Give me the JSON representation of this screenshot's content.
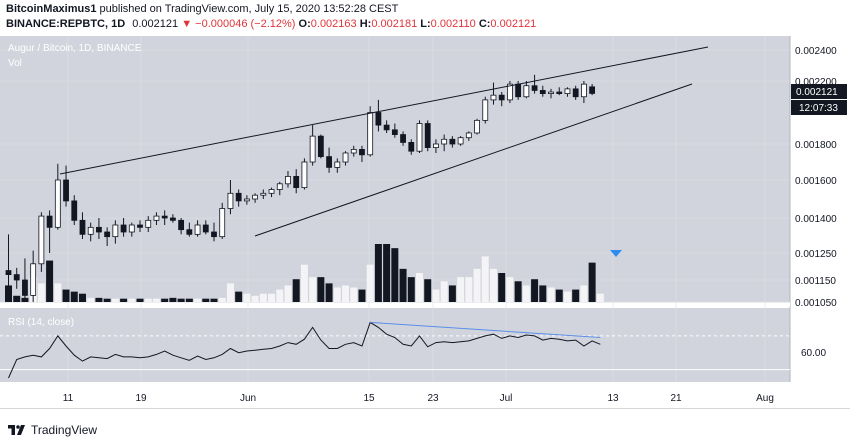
{
  "header": {
    "author": "BitcoinMaximus1",
    "published": "published on TradingView.com, July 15, 2020 13:52:28 CEST",
    "symbol": "BINANCE:REPBTC, 1D",
    "price": "0.002121",
    "change": "−0.000046 (−2.12%)",
    "o_label": "O:",
    "o_value": "0.002163",
    "h_label": "H:",
    "h_value": "0.002181",
    "l_label": "L:",
    "l_value": "0.002110",
    "c_label": "C:",
    "c_value": "0.002121"
  },
  "legend": {
    "title": "Augur / Bitcoin, 1D, BINANCE",
    "vol": "Vol",
    "rsi": "RSI (14, close)"
  },
  "price_tag": {
    "price": "0.002121",
    "countdown": "12:07:33"
  },
  "rsi_tag": "60.00",
  "footer": {
    "brand": "TradingView"
  },
  "colors": {
    "panel_bg": "#d1d4dc",
    "up": "#ffffff",
    "down": "#131722",
    "price_tag_bg": "#131722",
    "rsi_trend": "#5b8ee8",
    "signal": "#2e8cf0"
  },
  "chart_data": {
    "type": "candlestick",
    "title": "Augur / Bitcoin, 1D, BINANCE",
    "price_axis": [
      "0.002400",
      "0.002200",
      "0.001800",
      "0.001600",
      "0.001400",
      "0.001250",
      "0.001150",
      "0.001050"
    ],
    "x_ticks": [
      "11",
      "19",
      "Jun",
      "15",
      "23",
      "Jul",
      "13",
      "21",
      "Aug"
    ],
    "candles": [
      {
        "o": 0.001185,
        "h": 0.00133,
        "l": 0.00105,
        "c": 0.00117
      },
      {
        "o": 0.00117,
        "h": 0.001195,
        "l": 0.00111,
        "c": 0.00115
      },
      {
        "o": 0.00115,
        "h": 0.00123,
        "l": 0.00106,
        "c": 0.00108
      },
      {
        "o": 0.00108,
        "h": 0.00126,
        "l": 0.00105,
        "c": 0.00121
      },
      {
        "o": 0.00121,
        "h": 0.00143,
        "l": 0.00118,
        "c": 0.00141
      },
      {
        "o": 0.00141,
        "h": 0.00144,
        "l": 0.00125,
        "c": 0.00136
      },
      {
        "o": 0.00136,
        "h": 0.00169,
        "l": 0.00135,
        "c": 0.0016
      },
      {
        "o": 0.0016,
        "h": 0.00168,
        "l": 0.00146,
        "c": 0.00149
      },
      {
        "o": 0.00149,
        "h": 0.00152,
        "l": 0.00137,
        "c": 0.00139
      },
      {
        "o": 0.00139,
        "h": 0.00143,
        "l": 0.00131,
        "c": 0.00133
      },
      {
        "o": 0.00133,
        "h": 0.00138,
        "l": 0.0013,
        "c": 0.00136
      },
      {
        "o": 0.00136,
        "h": 0.0014,
        "l": 0.00131,
        "c": 0.00134
      },
      {
        "o": 0.00134,
        "h": 0.00136,
        "l": 0.00128,
        "c": 0.00132
      },
      {
        "o": 0.00132,
        "h": 0.00139,
        "l": 0.00129,
        "c": 0.00137
      },
      {
        "o": 0.00137,
        "h": 0.0014,
        "l": 0.00132,
        "c": 0.00134
      },
      {
        "o": 0.00134,
        "h": 0.00138,
        "l": 0.00132,
        "c": 0.00137
      },
      {
        "o": 0.00137,
        "h": 0.00139,
        "l": 0.00134,
        "c": 0.00136
      },
      {
        "o": 0.00136,
        "h": 0.00141,
        "l": 0.00134,
        "c": 0.00139
      },
      {
        "o": 0.00139,
        "h": 0.00143,
        "l": 0.00137,
        "c": 0.00141
      },
      {
        "o": 0.00141,
        "h": 0.00144,
        "l": 0.00137,
        "c": 0.0014
      },
      {
        "o": 0.0014,
        "h": 0.00142,
        "l": 0.00138,
        "c": 0.00139
      },
      {
        "o": 0.00139,
        "h": 0.0014,
        "l": 0.00133,
        "c": 0.00135
      },
      {
        "o": 0.00135,
        "h": 0.00138,
        "l": 0.00132,
        "c": 0.00133
      },
      {
        "o": 0.00133,
        "h": 0.00139,
        "l": 0.00132,
        "c": 0.00137
      },
      {
        "o": 0.00137,
        "h": 0.00139,
        "l": 0.00133,
        "c": 0.00134
      },
      {
        "o": 0.00134,
        "h": 0.00138,
        "l": 0.0013,
        "c": 0.00132
      },
      {
        "o": 0.00132,
        "h": 0.00148,
        "l": 0.00131,
        "c": 0.00145
      },
      {
        "o": 0.00145,
        "h": 0.0016,
        "l": 0.00142,
        "c": 0.00153
      },
      {
        "o": 0.00153,
        "h": 0.00155,
        "l": 0.00146,
        "c": 0.00149
      },
      {
        "o": 0.00149,
        "h": 0.00152,
        "l": 0.00147,
        "c": 0.0015
      },
      {
        "o": 0.0015,
        "h": 0.00153,
        "l": 0.00148,
        "c": 0.00152
      },
      {
        "o": 0.00152,
        "h": 0.00155,
        "l": 0.0015,
        "c": 0.00153
      },
      {
        "o": 0.00153,
        "h": 0.00156,
        "l": 0.00151,
        "c": 0.00155
      },
      {
        "o": 0.00155,
        "h": 0.00159,
        "l": 0.00152,
        "c": 0.00158
      },
      {
        "o": 0.00158,
        "h": 0.00165,
        "l": 0.00156,
        "c": 0.00162
      },
      {
        "o": 0.00162,
        "h": 0.00166,
        "l": 0.00153,
        "c": 0.00156
      },
      {
        "o": 0.00156,
        "h": 0.00172,
        "l": 0.00155,
        "c": 0.0017
      },
      {
        "o": 0.0017,
        "h": 0.00192,
        "l": 0.00168,
        "c": 0.00185
      },
      {
        "o": 0.00185,
        "h": 0.00186,
        "l": 0.00172,
        "c": 0.00173
      },
      {
        "o": 0.00173,
        "h": 0.00178,
        "l": 0.00164,
        "c": 0.00167
      },
      {
        "o": 0.00167,
        "h": 0.00172,
        "l": 0.00164,
        "c": 0.0017
      },
      {
        "o": 0.0017,
        "h": 0.00176,
        "l": 0.00168,
        "c": 0.00175
      },
      {
        "o": 0.00175,
        "h": 0.00179,
        "l": 0.00173,
        "c": 0.00177
      },
      {
        "o": 0.00177,
        "h": 0.00179,
        "l": 0.0017,
        "c": 0.00174
      },
      {
        "o": 0.00174,
        "h": 0.00204,
        "l": 0.00173,
        "c": 0.002
      },
      {
        "o": 0.002,
        "h": 0.00208,
        "l": 0.00188,
        "c": 0.00192
      },
      {
        "o": 0.00192,
        "h": 0.00195,
        "l": 0.00187,
        "c": 0.00189
      },
      {
        "o": 0.00189,
        "h": 0.00193,
        "l": 0.00184,
        "c": 0.00186
      },
      {
        "o": 0.00186,
        "h": 0.00188,
        "l": 0.00179,
        "c": 0.00181
      },
      {
        "o": 0.00181,
        "h": 0.00183,
        "l": 0.00174,
        "c": 0.00176
      },
      {
        "o": 0.00176,
        "h": 0.00195,
        "l": 0.00175,
        "c": 0.00193
      },
      {
        "o": 0.00193,
        "h": 0.00195,
        "l": 0.00176,
        "c": 0.00178
      },
      {
        "o": 0.00178,
        "h": 0.00183,
        "l": 0.00175,
        "c": 0.0018
      },
      {
        "o": 0.0018,
        "h": 0.00186,
        "l": 0.00176,
        "c": 0.00183
      },
      {
        "o": 0.00183,
        "h": 0.00185,
        "l": 0.00178,
        "c": 0.0018
      },
      {
        "o": 0.0018,
        "h": 0.00185,
        "l": 0.00179,
        "c": 0.00184
      },
      {
        "o": 0.00184,
        "h": 0.00188,
        "l": 0.00182,
        "c": 0.00187
      },
      {
        "o": 0.00187,
        "h": 0.00196,
        "l": 0.00186,
        "c": 0.00195
      },
      {
        "o": 0.00195,
        "h": 0.0021,
        "l": 0.00193,
        "c": 0.00208
      },
      {
        "o": 0.00208,
        "h": 0.00219,
        "l": 0.00205,
        "c": 0.00211
      },
      {
        "o": 0.00211,
        "h": 0.00213,
        "l": 0.00204,
        "c": 0.00208
      },
      {
        "o": 0.00208,
        "h": 0.0022,
        "l": 0.00206,
        "c": 0.00218
      },
      {
        "o": 0.00218,
        "h": 0.0022,
        "l": 0.00208,
        "c": 0.0021
      },
      {
        "o": 0.0021,
        "h": 0.0022,
        "l": 0.00209,
        "c": 0.00217
      },
      {
        "o": 0.00217,
        "h": 0.00224,
        "l": 0.00212,
        "c": 0.00214
      },
      {
        "o": 0.00214,
        "h": 0.00217,
        "l": 0.0021,
        "c": 0.00212
      },
      {
        "o": 0.00212,
        "h": 0.00215,
        "l": 0.00209,
        "c": 0.00213
      },
      {
        "o": 0.00213,
        "h": 0.00216,
        "l": 0.00211,
        "c": 0.00212
      },
      {
        "o": 0.00212,
        "h": 0.00216,
        "l": 0.0021,
        "c": 0.00215
      },
      {
        "o": 0.00215,
        "h": 0.00217,
        "l": 0.00208,
        "c": 0.0021
      },
      {
        "o": 0.0021,
        "h": 0.0022,
        "l": 0.00206,
        "c": 0.00218
      },
      {
        "o": 0.002163,
        "h": 0.002181,
        "l": 0.00211,
        "c": 0.002121
      }
    ],
    "volume": [
      40,
      15,
      10,
      60,
      45,
      100,
      45,
      30,
      25,
      20,
      10,
      10,
      8,
      8,
      8,
      8,
      8,
      8,
      8,
      8,
      10,
      8,
      8,
      8,
      8,
      8,
      10,
      45,
      25,
      20,
      15,
      20,
      20,
      30,
      40,
      55,
      90,
      60,
      60,
      45,
      35,
      40,
      35,
      30,
      90,
      140,
      140,
      130,
      80,
      60,
      70,
      55,
      30,
      50,
      40,
      60,
      60,
      80,
      110,
      80,
      70,
      60,
      50,
      40,
      55,
      40,
      35,
      30,
      25,
      30,
      40,
      95,
      20
    ],
    "rsi": [
      20,
      42,
      45,
      47,
      45,
      55,
      70,
      58,
      47,
      40,
      45,
      44,
      43,
      48,
      45,
      45,
      44,
      45,
      48,
      52,
      47,
      44,
      41,
      46,
      42,
      44,
      48,
      55,
      50,
      52,
      53,
      54,
      55,
      58,
      62,
      60,
      66,
      80,
      65,
      55,
      55,
      60,
      62,
      58,
      86,
      80,
      72,
      68,
      60,
      58,
      70,
      57,
      62,
      63,
      62,
      63,
      64,
      67,
      70,
      72,
      67,
      70,
      68,
      71,
      70,
      65,
      67,
      66,
      64,
      65,
      58,
      64,
      60
    ],
    "rsi_axis": [
      "60.00"
    ]
  }
}
